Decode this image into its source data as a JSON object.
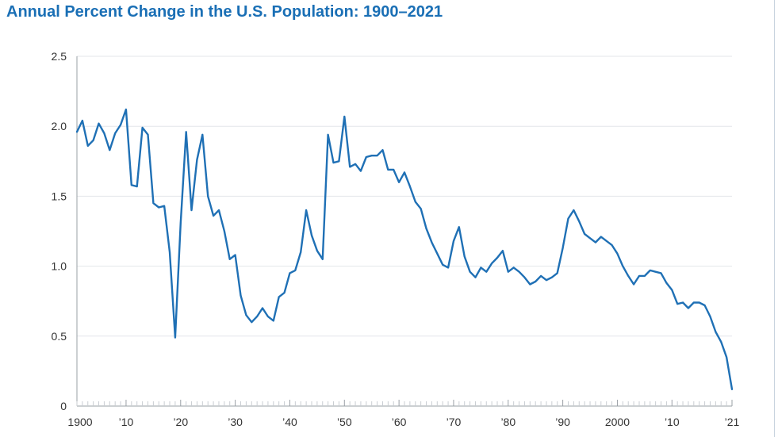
{
  "chart_data": {
    "type": "line",
    "title": "Annual Percent Change in the U.S. Population: 1900–2021",
    "xlabel": "",
    "ylabel": "",
    "xlim": [
      1901,
      2021
    ],
    "ylim": [
      0,
      2.5
    ],
    "y_ticks": [
      0,
      0.5,
      1.0,
      1.5,
      2.0,
      2.5
    ],
    "y_tick_labels": [
      "0",
      "0.5",
      "1.0",
      "1.5",
      "2.0",
      "2.5"
    ],
    "x_ticks": [
      1900,
      1910,
      1920,
      1930,
      1940,
      1950,
      1960,
      1970,
      1980,
      1990,
      2000,
      2010,
      2021
    ],
    "x_tick_labels": [
      "1900",
      "’10",
      "’20",
      "’30",
      "’40",
      "’50",
      "’60",
      "’70",
      "’80",
      "’90",
      "2000",
      "’10",
      "’21"
    ],
    "grid": true,
    "color": "#1f70b5",
    "x": [
      1901,
      1902,
      1903,
      1904,
      1905,
      1906,
      1907,
      1908,
      1909,
      1910,
      1911,
      1912,
      1913,
      1914,
      1915,
      1916,
      1917,
      1918,
      1919,
      1920,
      1921,
      1922,
      1923,
      1924,
      1925,
      1926,
      1927,
      1928,
      1929,
      1930,
      1931,
      1932,
      1933,
      1934,
      1935,
      1936,
      1937,
      1938,
      1939,
      1940,
      1941,
      1942,
      1943,
      1944,
      1945,
      1946,
      1947,
      1948,
      1949,
      1950,
      1951,
      1952,
      1953,
      1954,
      1955,
      1956,
      1957,
      1958,
      1959,
      1960,
      1961,
      1962,
      1963,
      1964,
      1965,
      1966,
      1967,
      1968,
      1969,
      1970,
      1971,
      1972,
      1973,
      1974,
      1975,
      1976,
      1977,
      1978,
      1979,
      1980,
      1981,
      1982,
      1983,
      1984,
      1985,
      1986,
      1987,
      1988,
      1989,
      1990,
      1991,
      1992,
      1993,
      1994,
      1995,
      1996,
      1997,
      1998,
      1999,
      2000,
      2001,
      2002,
      2003,
      2004,
      2005,
      2006,
      2007,
      2008,
      2009,
      2010,
      2011,
      2012,
      2013,
      2014,
      2015,
      2016,
      2017,
      2018,
      2019,
      2020,
      2021
    ],
    "values": [
      1.96,
      2.04,
      1.86,
      1.9,
      2.02,
      1.95,
      1.83,
      1.95,
      2.01,
      2.12,
      1.58,
      1.57,
      1.99,
      1.94,
      1.45,
      1.42,
      1.43,
      1.1,
      0.49,
      1.31,
      1.96,
      1.4,
      1.76,
      1.94,
      1.5,
      1.36,
      1.4,
      1.25,
      1.05,
      1.08,
      0.79,
      0.65,
      0.6,
      0.64,
      0.7,
      0.64,
      0.61,
      0.78,
      0.81,
      0.95,
      0.97,
      1.1,
      1.4,
      1.22,
      1.11,
      1.05,
      1.94,
      1.74,
      1.75,
      2.07,
      1.71,
      1.73,
      1.68,
      1.78,
      1.79,
      1.79,
      1.83,
      1.69,
      1.69,
      1.6,
      1.67,
      1.57,
      1.46,
      1.41,
      1.27,
      1.17,
      1.09,
      1.01,
      0.99,
      1.18,
      1.28,
      1.07,
      0.96,
      0.92,
      0.99,
      0.96,
      1.02,
      1.06,
      1.11,
      0.96,
      0.99,
      0.96,
      0.92,
      0.87,
      0.89,
      0.93,
      0.9,
      0.92,
      0.95,
      1.13,
      1.34,
      1.4,
      1.32,
      1.23,
      1.2,
      1.17,
      1.21,
      1.18,
      1.15,
      1.09,
      1.0,
      0.93,
      0.87,
      0.93,
      0.93,
      0.97,
      0.96,
      0.95,
      0.88,
      0.83,
      0.73,
      0.74,
      0.7,
      0.74,
      0.74,
      0.72,
      0.64,
      0.53,
      0.46,
      0.35,
      0.12
    ]
  }
}
